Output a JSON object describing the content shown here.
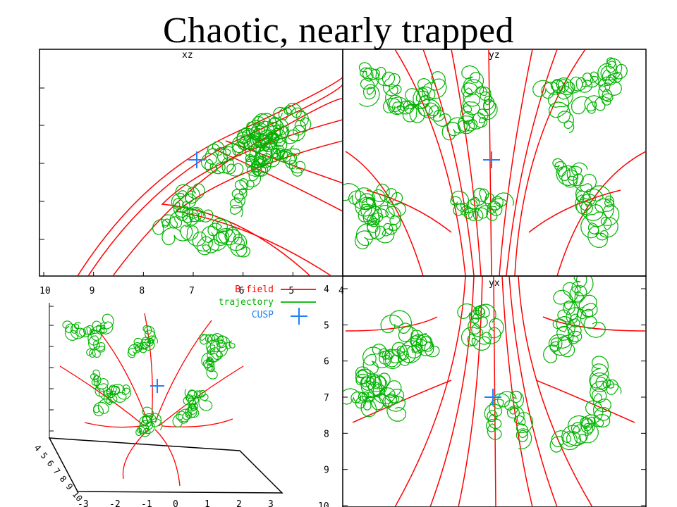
{
  "slide": {
    "title": "Chaotic, nearly trapped"
  },
  "colors": {
    "b_field": "#ff0000",
    "trajectory": "#00b300",
    "cusp": "#1e7fff",
    "axis": "#000000"
  },
  "chart_data": [
    {
      "id": "xz",
      "type": "line",
      "view_label": "xz",
      "xlim": [
        4,
        10
      ],
      "x_reversed": true,
      "x_ticks": [
        "10",
        "9",
        "8",
        "7",
        "6",
        "5",
        "4"
      ],
      "cusp": {
        "x": 7.0,
        "y": "center"
      },
      "grid": false
    },
    {
      "id": "yz",
      "type": "line",
      "view_label": "yz",
      "grid": false,
      "cusp": {
        "x": "center",
        "y": "center"
      }
    },
    {
      "id": "yx",
      "type": "line",
      "view_label": "yx",
      "ylim": [
        4,
        10
      ],
      "y_ticks": [
        "4",
        "5",
        "6",
        "7",
        "8",
        "9",
        "10"
      ],
      "cusp": {
        "x": "center",
        "y": 7.0
      },
      "grid": false
    },
    {
      "id": "perspective",
      "type": "line",
      "x_ticks": [
        "-3",
        "-2",
        "-1",
        "0",
        "1",
        "2",
        "3"
      ],
      "depth_ticks": [
        "4",
        "5",
        "6",
        "7",
        "8",
        "9",
        "10"
      ],
      "grid": false
    }
  ],
  "legend": {
    "placement": "top-left of lower-left panel",
    "entries": [
      {
        "name": "B-field",
        "style": "line",
        "color": "#ff0000"
      },
      {
        "name": "trajectory",
        "style": "line",
        "color": "#00b300"
      },
      {
        "name": "CUSP",
        "style": "cross",
        "color": "#1e7fff"
      }
    ]
  }
}
